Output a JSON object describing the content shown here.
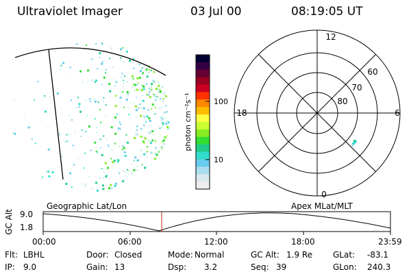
{
  "header": {
    "instrument": "Ultraviolet Imager",
    "date": "03 Jul 00",
    "time": "08:19:05 UT"
  },
  "colorbar": {
    "unit_label": "photon cm⁻²s⁻¹",
    "ticks": [
      "100",
      "10"
    ],
    "colors": [
      "#000033",
      "#330044",
      "#660033",
      "#990022",
      "#cc0022",
      "#ff3300",
      "#ff8800",
      "#ffbb00",
      "#ffff44",
      "#ccff33",
      "#88ee22",
      "#33dd33",
      "#22cc88",
      "#33ddcc",
      "#66ccee",
      "#aaddee",
      "#d8e8ee",
      "#eeeeee"
    ]
  },
  "polar_plot": {
    "mlt_labels": {
      "top": "12",
      "right": "6",
      "bottom": "0",
      "left": "18"
    },
    "lat_labels": [
      "60",
      "70",
      "80"
    ]
  },
  "timeline": {
    "ylabel": "GC Alt",
    "ymax": "9.0",
    "ymin": "1.8",
    "left_title": "Geographic Lat/Lon",
    "right_title": "Apex MLat/MLT",
    "xticks": [
      "00:00",
      "06:00",
      "12:00",
      "18:00",
      "23:59"
    ],
    "marker_time": "08:19"
  },
  "info": {
    "flt_label": "Flt:",
    "flt_value": "LBHL",
    "ip_label": "IP:",
    "ip_value": "9.0",
    "door_label": "Door:",
    "door_value": "Closed",
    "gain_label": "Gain:",
    "gain_value": "13",
    "mode_label": "Mode:",
    "mode_value": "Normal",
    "dsp_label": "Dsp:",
    "dsp_value": "3.2",
    "gcalt_label": "GC Alt:",
    "gcalt_value": "1.9 Re",
    "seq_label": "Seq:",
    "seq_value": "39",
    "glat_label": "GLat:",
    "glat_value": "-83.1",
    "glon_label": "GLon:",
    "glon_value": "240.3"
  }
}
